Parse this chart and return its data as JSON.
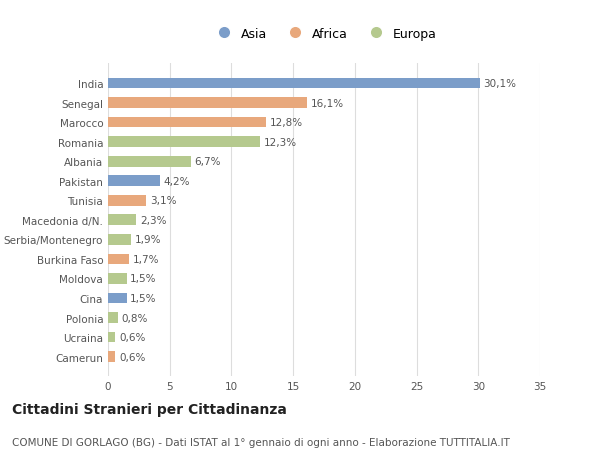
{
  "categories": [
    "Camerun",
    "Ucraina",
    "Polonia",
    "Cina",
    "Moldova",
    "Burkina Faso",
    "Serbia/Montenegro",
    "Macedonia d/N.",
    "Tunisia",
    "Pakistan",
    "Albania",
    "Romania",
    "Marocco",
    "Senegal",
    "India"
  ],
  "values": [
    0.6,
    0.6,
    0.8,
    1.5,
    1.5,
    1.7,
    1.9,
    2.3,
    3.1,
    4.2,
    6.7,
    12.3,
    12.8,
    16.1,
    30.1
  ],
  "labels": [
    "0,6%",
    "0,6%",
    "0,8%",
    "1,5%",
    "1,5%",
    "1,7%",
    "1,9%",
    "2,3%",
    "3,1%",
    "4,2%",
    "6,7%",
    "12,3%",
    "12,8%",
    "16,1%",
    "30,1%"
  ],
  "continent": [
    "Africa",
    "Europa",
    "Europa",
    "Asia",
    "Europa",
    "Africa",
    "Europa",
    "Europa",
    "Africa",
    "Asia",
    "Europa",
    "Europa",
    "Africa",
    "Africa",
    "Asia"
  ],
  "colors": {
    "Asia": "#7b9dc9",
    "Africa": "#e8a87c",
    "Europa": "#b5c98e"
  },
  "xlim": [
    0,
    35
  ],
  "xticks": [
    0,
    5,
    10,
    15,
    20,
    25,
    30,
    35
  ],
  "title": "Cittadini Stranieri per Cittadinanza",
  "subtitle": "COMUNE DI GORLAGO (BG) - Dati ISTAT al 1° gennaio di ogni anno - Elaborazione TUTTITALIA.IT",
  "bg_color": "#ffffff",
  "bar_height": 0.55,
  "label_fontsize": 7.5,
  "tick_fontsize": 7.5,
  "title_fontsize": 10,
  "subtitle_fontsize": 7.5
}
